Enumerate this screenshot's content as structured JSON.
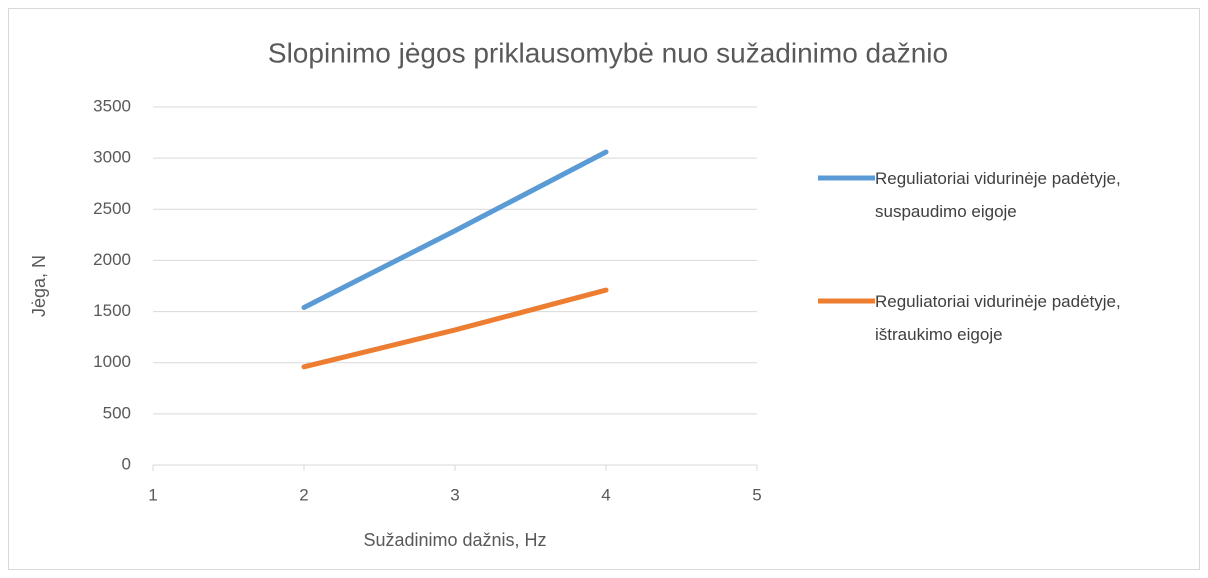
{
  "chart_data": {
    "type": "line",
    "title": "Slopinimo jėgos priklausomybė nuo sužadinimo dažnio",
    "x_label": "Sužadinimo dažnis, Hz",
    "y_label": "Jėga, N",
    "x": [
      2,
      3,
      4
    ],
    "series": [
      {
        "name": "Reguliatoriai vidurinėje padėtyje, suspaudimo eigoje",
        "color": "#5b9bd5",
        "values": [
          1540,
          2290,
          3060
        ]
      },
      {
        "name": "Reguliatoriai vidurinėje padėtyje, ištraukimo eigoje",
        "color": "#ed7d31",
        "values": [
          960,
          1320,
          1710
        ]
      }
    ],
    "xlim": [
      1,
      5
    ],
    "xticks": [
      1,
      2,
      3,
      4,
      5
    ],
    "ylim": [
      0,
      3500
    ],
    "yticks": [
      0,
      500,
      1000,
      1500,
      2000,
      2500,
      3000,
      3500
    ],
    "grid": true,
    "legend": "right"
  }
}
